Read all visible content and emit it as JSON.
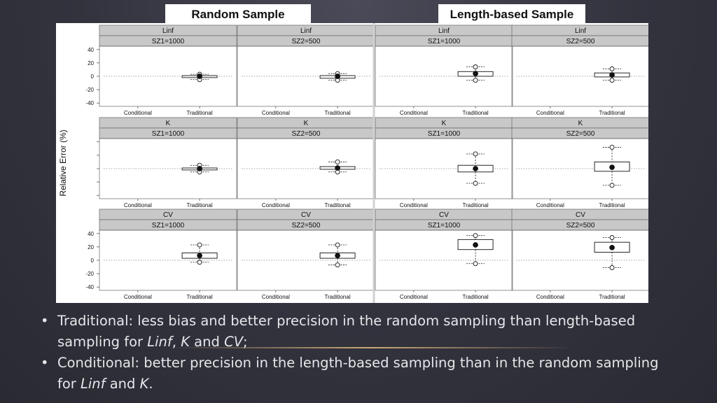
{
  "titles": {
    "random": "Random Sample",
    "length": "Length-based Sample"
  },
  "figure": {
    "ylabel": "Relative Error (%)",
    "x_categories": [
      "Conditional",
      "Traditional"
    ],
    "y_ticks": [
      "40",
      "20",
      "0",
      "-20",
      "-40"
    ]
  },
  "chart_data": {
    "type": "boxplot",
    "ylabel": "Relative Error (%)",
    "ylim": [
      -45,
      45
    ],
    "y_ticks": [
      40,
      20,
      0,
      -20,
      -40
    ],
    "categories": [
      "Conditional",
      "Traditional"
    ],
    "panels": [
      {
        "param": "Linf",
        "size": "SZ1=1000",
        "sample": "Random Sample",
        "traditional": {
          "low": -5,
          "q1": -2,
          "median": 0,
          "q3": 1,
          "high": 3
        }
      },
      {
        "param": "Linf",
        "size": "SZ2=500",
        "sample": "Random Sample",
        "traditional": {
          "low": -6,
          "q1": -3,
          "median": 0,
          "q3": 1,
          "high": 4
        }
      },
      {
        "param": "Linf",
        "size": "SZ1=1000",
        "sample": "Length-based Sample",
        "traditional": {
          "low": -6,
          "q1": 0,
          "median": 4,
          "q3": 7,
          "high": 14
        }
      },
      {
        "param": "Linf",
        "size": "SZ2=500",
        "sample": "Length-based Sample",
        "traditional": {
          "low": -6,
          "q1": -1,
          "median": 2,
          "q3": 5,
          "high": 11
        }
      },
      {
        "param": "K",
        "size": "SZ1=1000",
        "sample": "Random Sample",
        "traditional": {
          "low": -5,
          "q1": -2,
          "median": 0,
          "q3": 1,
          "high": 5
        }
      },
      {
        "param": "K",
        "size": "SZ2=500",
        "sample": "Random Sample",
        "traditional": {
          "low": -5,
          "q1": -1,
          "median": 1,
          "q3": 3,
          "high": 10
        }
      },
      {
        "param": "K",
        "size": "SZ1=1000",
        "sample": "Length-based Sample",
        "traditional": {
          "low": -22,
          "q1": -5,
          "median": 0,
          "q3": 5,
          "high": 22
        }
      },
      {
        "param": "K",
        "size": "SZ2=500",
        "sample": "Length-based Sample",
        "traditional": {
          "low": -25,
          "q1": -4,
          "median": 2,
          "q3": 10,
          "high": 32
        }
      },
      {
        "param": "CV",
        "size": "SZ1=1000",
        "sample": "Random Sample",
        "traditional": {
          "low": -3,
          "q1": 3,
          "median": 7,
          "q3": 11,
          "high": 23
        }
      },
      {
        "param": "CV",
        "size": "SZ2=500",
        "sample": "Random Sample",
        "traditional": {
          "low": -7,
          "q1": 3,
          "median": 7,
          "q3": 11,
          "high": 23
        }
      },
      {
        "param": "CV",
        "size": "SZ1=1000",
        "sample": "Length-based Sample",
        "traditional": {
          "low": -5,
          "q1": 16,
          "median": 23,
          "q3": 31,
          "high": 37
        }
      },
      {
        "param": "CV",
        "size": "SZ2=500",
        "sample": "Length-based Sample",
        "traditional": {
          "low": -11,
          "q1": 12,
          "median": 19,
          "q3": 27,
          "high": 34
        }
      }
    ]
  },
  "bullets": [
    {
      "text1": "Traditional: less bias and better precision in the random sampling than length-based sampling for ",
      "em1": "Linf",
      "sep1": ", ",
      "em2": "K",
      "sep2": " and ",
      "em3": "CV",
      "tail": ";"
    },
    {
      "text1": "Conditional: better precision in the length-based sampling than in the random sampling for ",
      "em1": "Linf",
      "sep1": " and ",
      "em2": "K",
      "tail": "."
    }
  ],
  "bullet_symbol": "•",
  "colors": {
    "background": "#33333e",
    "strip": "#c8c8c8",
    "box_fill": "#ffffff",
    "ink": "#111111"
  }
}
